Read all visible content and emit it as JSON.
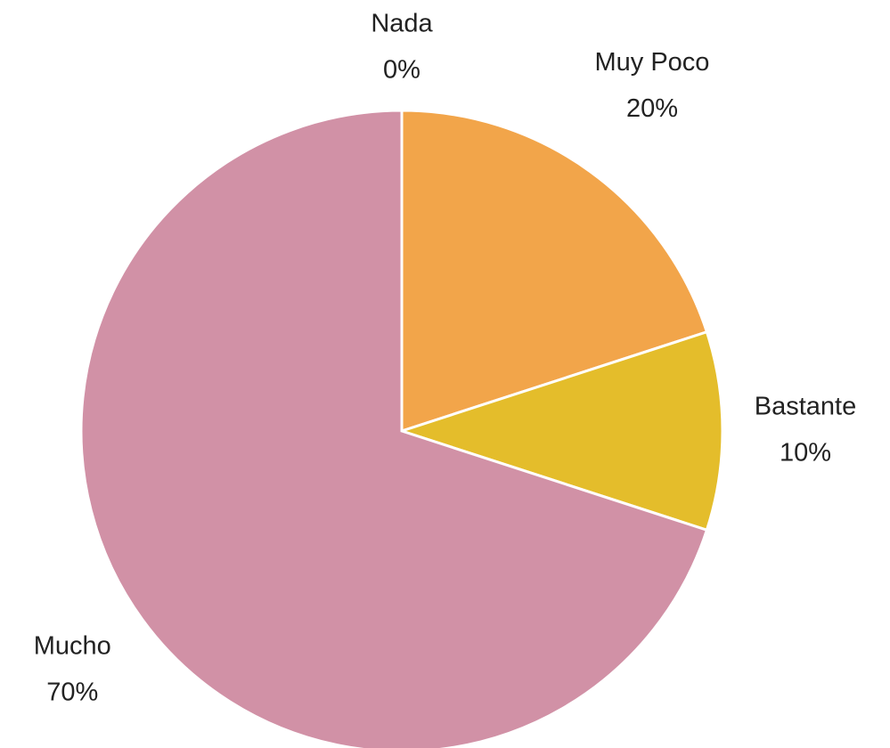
{
  "chart_data": {
    "type": "pie",
    "categories": [
      "Nada",
      "Muy Poco",
      "Bastante",
      "Mucho"
    ],
    "values": [
      0,
      20,
      10,
      70
    ],
    "value_labels": [
      "0%",
      "20%",
      "10%",
      "70%"
    ],
    "colors": [
      null,
      "#f2a54a",
      "#e4bd2b",
      "#d191a6"
    ]
  }
}
